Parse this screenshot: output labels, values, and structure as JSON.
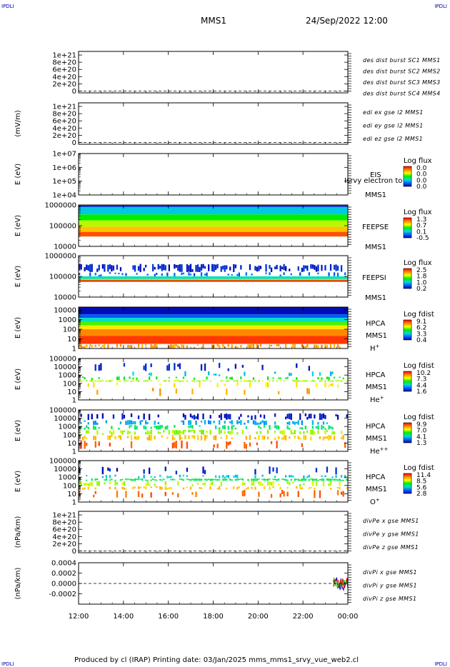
{
  "header": {
    "corner_left": "IPDLI",
    "corner_right": "IPDLI",
    "title": "MMS1",
    "date": "24/Sep/2022 12:00"
  },
  "footer": {
    "text": "Produced by cl (IRAP)   Printing date: 03/Jan/2025   mms_mms1_srvy_vue_web2.cl",
    "corner_left": "IPDLI",
    "corner_right": "IPDLI"
  },
  "colors": {
    "red": "#cc0000",
    "green": "#00cc00",
    "blue": "#0000cc",
    "magenta": "#cc00cc",
    "axis": "#000000"
  },
  "chart_data": [
    {
      "id": "p1",
      "type": "line",
      "ylabel": "",
      "ylim": [
        -5e+19,
        1.1e+21
      ],
      "yticks": [
        "1e+21",
        "8e+20",
        "6e+20",
        "4e+20",
        "2e+20",
        "0"
      ],
      "ytick_values": [
        1e+21,
        8e+20,
        6e+20,
        4e+20,
        2e+20,
        0
      ],
      "legend": [
        {
          "name": "des dist burst SC1 MMS1",
          "color": "#0000cc"
        },
        {
          "name": "des dist burst SC2 MMS2",
          "color": "#cc00cc"
        },
        {
          "name": "des dist burst SC3 MMS3",
          "color": "#cc0000"
        },
        {
          "name": "des dist burst SC4 MMS4",
          "color": "#00cc00"
        }
      ],
      "zero_line": true
    },
    {
      "id": "p2",
      "type": "line",
      "ylabel": "(mV/m)",
      "ylim": [
        -5e+19,
        1.1e+21
      ],
      "yticks": [
        "1e+21",
        "8e+20",
        "6e+20",
        "4e+20",
        "2e+20",
        "0"
      ],
      "ytick_values": [
        1e+21,
        8e+20,
        6e+20,
        4e+20,
        2e+20,
        0
      ],
      "legend": [
        {
          "name": "edi ex gse l2 MMS1",
          "color": "#cc0000"
        },
        {
          "name": "edi ey gse l2 MMS1",
          "color": "#00cc00"
        },
        {
          "name": "edi ez gse l2 MMS1",
          "color": "#0000cc"
        }
      ],
      "zero_line": true
    },
    {
      "id": "p3",
      "type": "heatmap",
      "ylabel": "E (eV)",
      "ylim": [
        10000.0,
        10000000.0
      ],
      "yscale": "log",
      "yticks": [
        "1e+07",
        "1e+06",
        "1e+05",
        "1e+04"
      ],
      "ytick_values": [
        10000000.0,
        1000000.0,
        100000.0,
        10000.0
      ],
      "side_labels": [
        "EIS",
        "MMS1"
      ],
      "overlay_text": "Isrvy electron to",
      "colorbar": {
        "title": "Log flux",
        "ticks": [
          "0.0",
          "0.0",
          "0.0",
          "0.0"
        ]
      },
      "empty": true
    },
    {
      "id": "p4",
      "type": "heatmap",
      "ylabel": "E (eV)",
      "ylim": [
        10000.0,
        1000000.0
      ],
      "yscale": "log",
      "yticks": [
        "1000000",
        "100000",
        "10000"
      ],
      "ytick_values": [
        1000000.0,
        100000.0,
        10000.0
      ],
      "side_labels": [
        "FEEPSE",
        "MMS1"
      ],
      "colorbar": {
        "title": "Log flux",
        "ticks": [
          "1.3",
          "0.7",
          "0.1",
          "-0.5"
        ]
      },
      "bands": [
        {
          "from": 800000.0,
          "to": 950000.0,
          "level": 0.05
        },
        {
          "from": 350000.0,
          "to": 800000.0,
          "level": 0.3
        },
        {
          "from": 180000.0,
          "to": 350000.0,
          "level": 0.5
        },
        {
          "from": 90000.0,
          "to": 180000.0,
          "level": 0.62
        },
        {
          "from": 50000.0,
          "to": 90000.0,
          "level": 0.75
        },
        {
          "from": 30000.0,
          "to": 50000.0,
          "level": 0.9
        }
      ]
    },
    {
      "id": "p5",
      "type": "heatmap",
      "ylabel": "E (eV)",
      "ylim": [
        10000.0,
        1000000.0
      ],
      "yscale": "log",
      "yticks": [
        "1000000",
        "100000",
        "10000"
      ],
      "ytick_values": [
        1000000.0,
        100000.0,
        10000.0
      ],
      "side_labels": [
        "FEEPSI",
        "MMS1"
      ],
      "colorbar": {
        "title": "Log flux",
        "ticks": [
          "2.5",
          "1.8",
          "1.0",
          "0.2"
        ]
      },
      "bands": [
        {
          "from": 160000.0,
          "to": 400000.0,
          "level": 0.05,
          "sparse": 0.55
        },
        {
          "from": 100000.0,
          "to": 160000.0,
          "level": 0.15,
          "sparse": 0.3
        },
        {
          "from": 75000.0,
          "to": 100000.0,
          "level": 0.35
        },
        {
          "from": 65000.0,
          "to": 75000.0,
          "level": 0.6
        },
        {
          "from": 55000.0,
          "to": 65000.0,
          "level": 0.98
        }
      ]
    },
    {
      "id": "p6",
      "type": "heatmap",
      "ylabel": "E (eV)",
      "ylim": [
        1,
        20000
      ],
      "yscale": "log",
      "yticks": [
        "10000",
        "1000",
        "100",
        "10",
        "1"
      ],
      "ytick_values": [
        10000,
        1000,
        100,
        10,
        1
      ],
      "side_labels": [
        "HPCA",
        "MMS1",
        "H+"
      ],
      "colorbar": {
        "title": "Log fdist",
        "ticks": [
          "9.1",
          "6.2",
          "3.3",
          "0.4"
        ]
      },
      "bands": [
        {
          "from": 3500,
          "to": 20000,
          "level": 0.02
        },
        {
          "from": 1500,
          "to": 3500,
          "level": 0.15
        },
        {
          "from": 600,
          "to": 1500,
          "level": 0.35
        },
        {
          "from": 250,
          "to": 600,
          "level": 0.55
        },
        {
          "from": 100,
          "to": 250,
          "level": 0.7
        },
        {
          "from": 20,
          "to": 100,
          "level": 0.83
        },
        {
          "from": 3,
          "to": 20,
          "level": 0.93
        },
        {
          "from": 1,
          "to": 3,
          "level": 0.8,
          "sparse": 0.5
        }
      ]
    },
    {
      "id": "p7",
      "type": "heatmap",
      "ylabel": "E (eV)",
      "ylim": [
        1,
        100000
      ],
      "yscale": "log",
      "yticks": [
        "100000",
        "10000",
        "1000",
        "100",
        "10",
        "1"
      ],
      "ytick_values": [
        100000,
        10000,
        1000,
        100,
        10,
        1
      ],
      "side_labels": [
        "HPCA",
        "MMS1",
        "He+"
      ],
      "colorbar": {
        "title": "Log fdist",
        "ticks": [
          "10.2",
          "7.3",
          "4.4",
          "1.6"
        ]
      },
      "bands": [
        {
          "from": 3000,
          "to": 30000,
          "level": 0.05,
          "sparse": 0.12
        },
        {
          "from": 700,
          "to": 3000,
          "level": 0.3,
          "sparse": 0.1
        },
        {
          "from": 250,
          "to": 700,
          "level": 0.48,
          "sparse": 0.2
        },
        {
          "from": 150,
          "to": 250,
          "level": 0.62,
          "sparse": 0.55
        },
        {
          "from": 30,
          "to": 150,
          "level": 0.7,
          "sparse": 0.12
        },
        {
          "from": 3,
          "to": 30,
          "level": 0.8,
          "sparse": 0.05
        }
      ]
    },
    {
      "id": "p8",
      "type": "heatmap",
      "ylabel": "E (eV)",
      "ylim": [
        1,
        100000
      ],
      "yscale": "log",
      "yticks": [
        "100000",
        "10000",
        "1000",
        "100",
        "10",
        "1"
      ],
      "ytick_values": [
        100000,
        10000,
        1000,
        100,
        10,
        1
      ],
      "side_labels": [
        "HPCA",
        "MMS1",
        "He++"
      ],
      "colorbar": {
        "title": "Log fdist",
        "ticks": [
          "9.9",
          "7.0",
          "4.1",
          "1.3"
        ]
      },
      "bands": [
        {
          "from": 6000,
          "to": 40000,
          "level": 0.03,
          "sparse": 0.35
        },
        {
          "from": 1500,
          "to": 6000,
          "level": 0.25,
          "sparse": 0.35
        },
        {
          "from": 400,
          "to": 1500,
          "level": 0.42,
          "sparse": 0.4
        },
        {
          "from": 100,
          "to": 400,
          "level": 0.6,
          "sparse": 0.45
        },
        {
          "from": 20,
          "to": 100,
          "level": 0.75,
          "sparse": 0.4
        },
        {
          "from": 2,
          "to": 20,
          "level": 0.9,
          "sparse": 0.15
        }
      ]
    },
    {
      "id": "p9",
      "type": "heatmap",
      "ylabel": "E (eV)",
      "ylim": [
        1,
        100000
      ],
      "yscale": "log",
      "yticks": [
        "100000",
        "10000",
        "1000",
        "100",
        "10",
        "1"
      ],
      "ytick_values": [
        100000,
        10000,
        1000,
        100,
        10,
        1
      ],
      "side_labels": [
        "HPCA",
        "MMS1",
        "O+"
      ],
      "colorbar": {
        "title": "Log fdist",
        "ticks": [
          "11.4",
          "8.5",
          "5.6",
          "2.8"
        ]
      },
      "bands": [
        {
          "from": 2000,
          "to": 20000,
          "level": 0.05,
          "sparse": 0.15
        },
        {
          "from": 700,
          "to": 2000,
          "level": 0.3,
          "sparse": 0.25
        },
        {
          "from": 350,
          "to": 700,
          "level": 0.45,
          "sparse": 0.7
        },
        {
          "from": 80,
          "to": 350,
          "level": 0.62,
          "sparse": 0.3
        },
        {
          "from": 30,
          "to": 80,
          "level": 0.75,
          "sparse": 0.4
        },
        {
          "from": 3,
          "to": 30,
          "level": 0.88,
          "sparse": 0.15
        }
      ]
    },
    {
      "id": "p10",
      "type": "line",
      "ylabel": "(nPa/km)",
      "ylim": [
        -5e+19,
        1.1e+21
      ],
      "yticks": [
        "1e+21",
        "8e+20",
        "6e+20",
        "4e+20",
        "2e+20",
        "0"
      ],
      "ytick_values": [
        1e+21,
        8e+20,
        6e+20,
        4e+20,
        2e+20,
        0
      ],
      "legend": [
        {
          "name": "divPe x gse MMS1",
          "color": "#cc0000"
        },
        {
          "name": "divPe y gse MMS1",
          "color": "#00cc00"
        },
        {
          "name": "divPe z gse MMS1",
          "color": "#0000cc"
        }
      ],
      "zero_line": true
    },
    {
      "id": "p11",
      "type": "line",
      "ylabel": "(nPa/km)",
      "ylim": [
        -0.0004,
        0.0004
      ],
      "yticks": [
        "0.0004",
        "0.0002",
        "0.0000",
        "-0.0002"
      ],
      "ytick_values": [
        0.0004,
        0.0002,
        0.0,
        -0.0002
      ],
      "legend": [
        {
          "name": "divPi x gse MMS1",
          "color": "#cc0000"
        },
        {
          "name": "divPi y gse MMS1",
          "color": "#00cc00"
        },
        {
          "name": "divPi z gse MMS1",
          "color": "#0000cc"
        }
      ],
      "zero_line": true,
      "activity_window_hours": [
        11.35,
        12.0
      ]
    }
  ],
  "x_axis": {
    "range_hours": [
      0,
      12
    ],
    "ticks": [
      "12:00",
      "14:00",
      "16:00",
      "18:00",
      "20:00",
      "22:00",
      "00:00"
    ],
    "tick_hours": [
      0,
      2,
      4,
      6,
      8,
      10,
      12
    ]
  }
}
